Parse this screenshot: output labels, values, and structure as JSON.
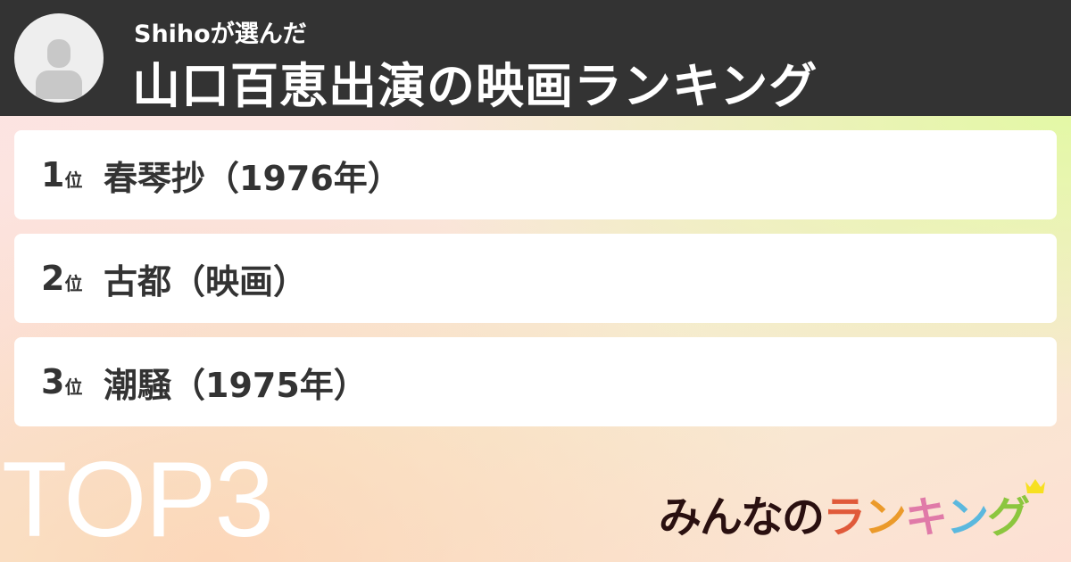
{
  "header": {
    "subtitle": "Shihoが選んだ",
    "title": "山口百恵出演の映画ランキング",
    "avatar_icon": "user-avatar-icon"
  },
  "ranking": [
    {
      "rank": "1",
      "suffix": "位",
      "name": "春琴抄（1976年）"
    },
    {
      "rank": "2",
      "suffix": "位",
      "name": "古都（映画）"
    },
    {
      "rank": "3",
      "suffix": "位",
      "name": "潮騒（1975年）"
    }
  ],
  "badge": "TOP3",
  "logo": {
    "prefix": "みんなの",
    "chars": [
      "ラ",
      "ン",
      "キ",
      "ン",
      "グ"
    ],
    "colors": [
      "#e05a3a",
      "#eb9a2a",
      "#e07aa8",
      "#5bb8de",
      "#8cc63f"
    ],
    "prefix_color": "#2a1010",
    "crown_color": "#f7e020"
  }
}
